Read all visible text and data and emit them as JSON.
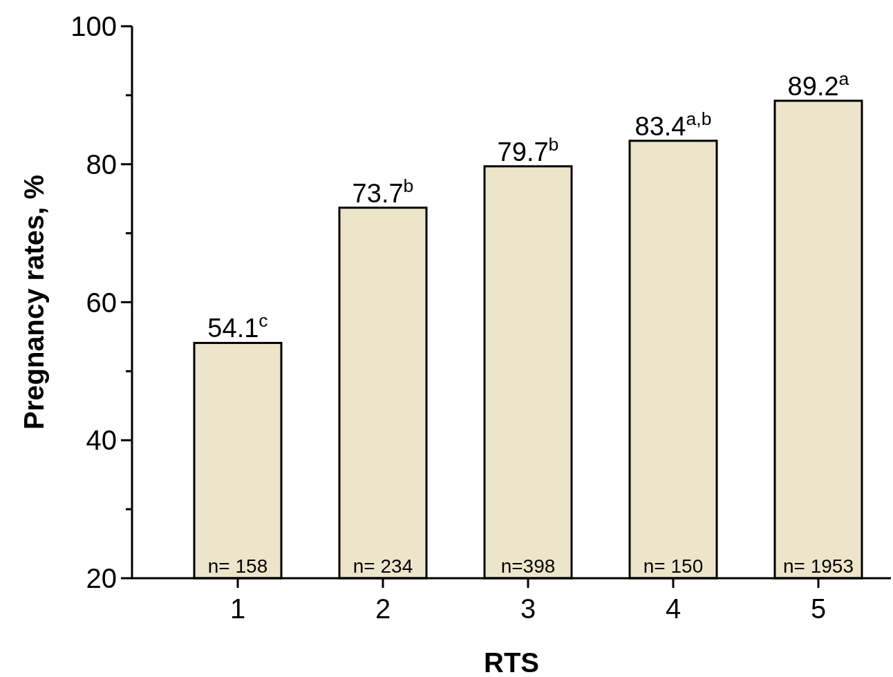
{
  "chart_data": {
    "type": "bar",
    "xlabel": "RTS",
    "ylabel": "Pregnancy rates, %",
    "categories": [
      "1",
      "2",
      "3",
      "4",
      "5"
    ],
    "values": [
      54.1,
      73.7,
      79.7,
      83.4,
      89.2
    ],
    "value_labels": [
      "54.1$^{c}$",
      "73.7$^{b}$",
      "79.7$^{b}$",
      "83.4$^{a,b}$",
      "89.2$^{a}$"
    ],
    "color": "#ede5c9",
    "ylim": [
      20,
      100
    ],
    "yticks": [
      20,
      {
        "value": 30,
        "label": null
      },
      40,
      {
        "value": 50,
        "label": null
      },
      60,
      {
        "value": 70,
        "label": null
      },
      80,
      {
        "value": 90,
        "label": null
      },
      100
    ],
    "grid": false,
    "annotations": [
      {
        "text": "n= 158",
        "x": "1",
        "y": 20
      },
      {
        "text": "n= 234",
        "x": "2",
        "y": 20
      },
      {
        "text": "n=398",
        "x": "3",
        "y": 20
      },
      {
        "text": "n= 150",
        "x": "4",
        "y": 20
      },
      {
        "text": "n= 1953",
        "x": "5",
        "y": 20
      }
    ]
  }
}
